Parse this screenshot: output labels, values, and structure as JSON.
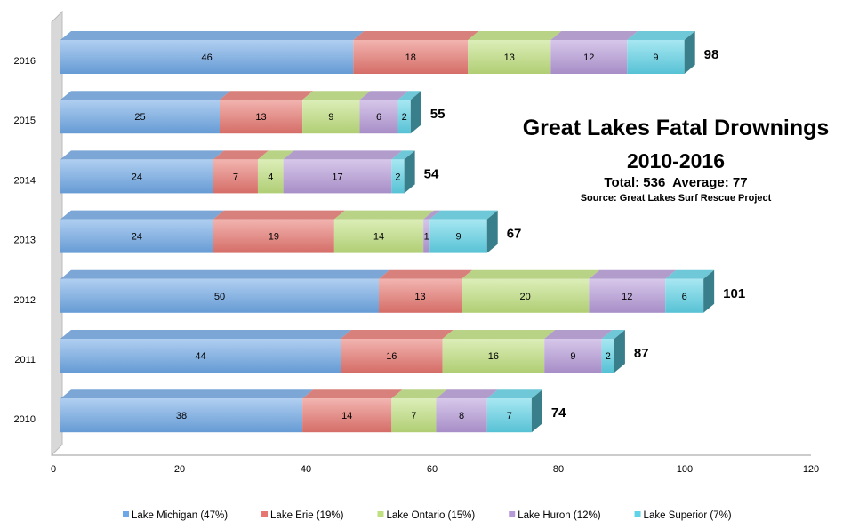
{
  "chart_data": {
    "type": "bar",
    "orientation": "horizontal",
    "stacked": true,
    "title": "Great Lakes Fatal Drownings",
    "subtitle": "2010-2016",
    "summary": "Total: 536  Average: 77",
    "source": "Source: Great Lakes Surf Rescue Project",
    "categories": [
      "2016",
      "2015",
      "2014",
      "2013",
      "2012",
      "2011",
      "2010"
    ],
    "totals": [
      98,
      55,
      54,
      67,
      101,
      87,
      74
    ],
    "series": [
      {
        "name": "Lake Michigan (47%)",
        "values": [
          46,
          25,
          24,
          24,
          50,
          44,
          38
        ],
        "color": "#6fa8e6"
      },
      {
        "name": "Lake Erie (19%)",
        "values": [
          18,
          13,
          7,
          19,
          13,
          16,
          14
        ],
        "color": "#e87670"
      },
      {
        "name": "Lake Ontario (15%)",
        "values": [
          13,
          9,
          4,
          14,
          20,
          16,
          7
        ],
        "color": "#bfe07e"
      },
      {
        "name": "Lake Huron (12%)",
        "values": [
          12,
          6,
          17,
          1,
          12,
          9,
          8
        ],
        "color": "#b69ad8"
      },
      {
        "name": "Lake Superior (7%)",
        "values": [
          9,
          2,
          2,
          9,
          6,
          2,
          7
        ],
        "color": "#5fd3e8"
      }
    ],
    "xlim": [
      0,
      120
    ],
    "xticks": [
      0,
      20,
      40,
      60,
      80,
      100,
      120
    ],
    "legend": "bottom",
    "grid": false
  }
}
